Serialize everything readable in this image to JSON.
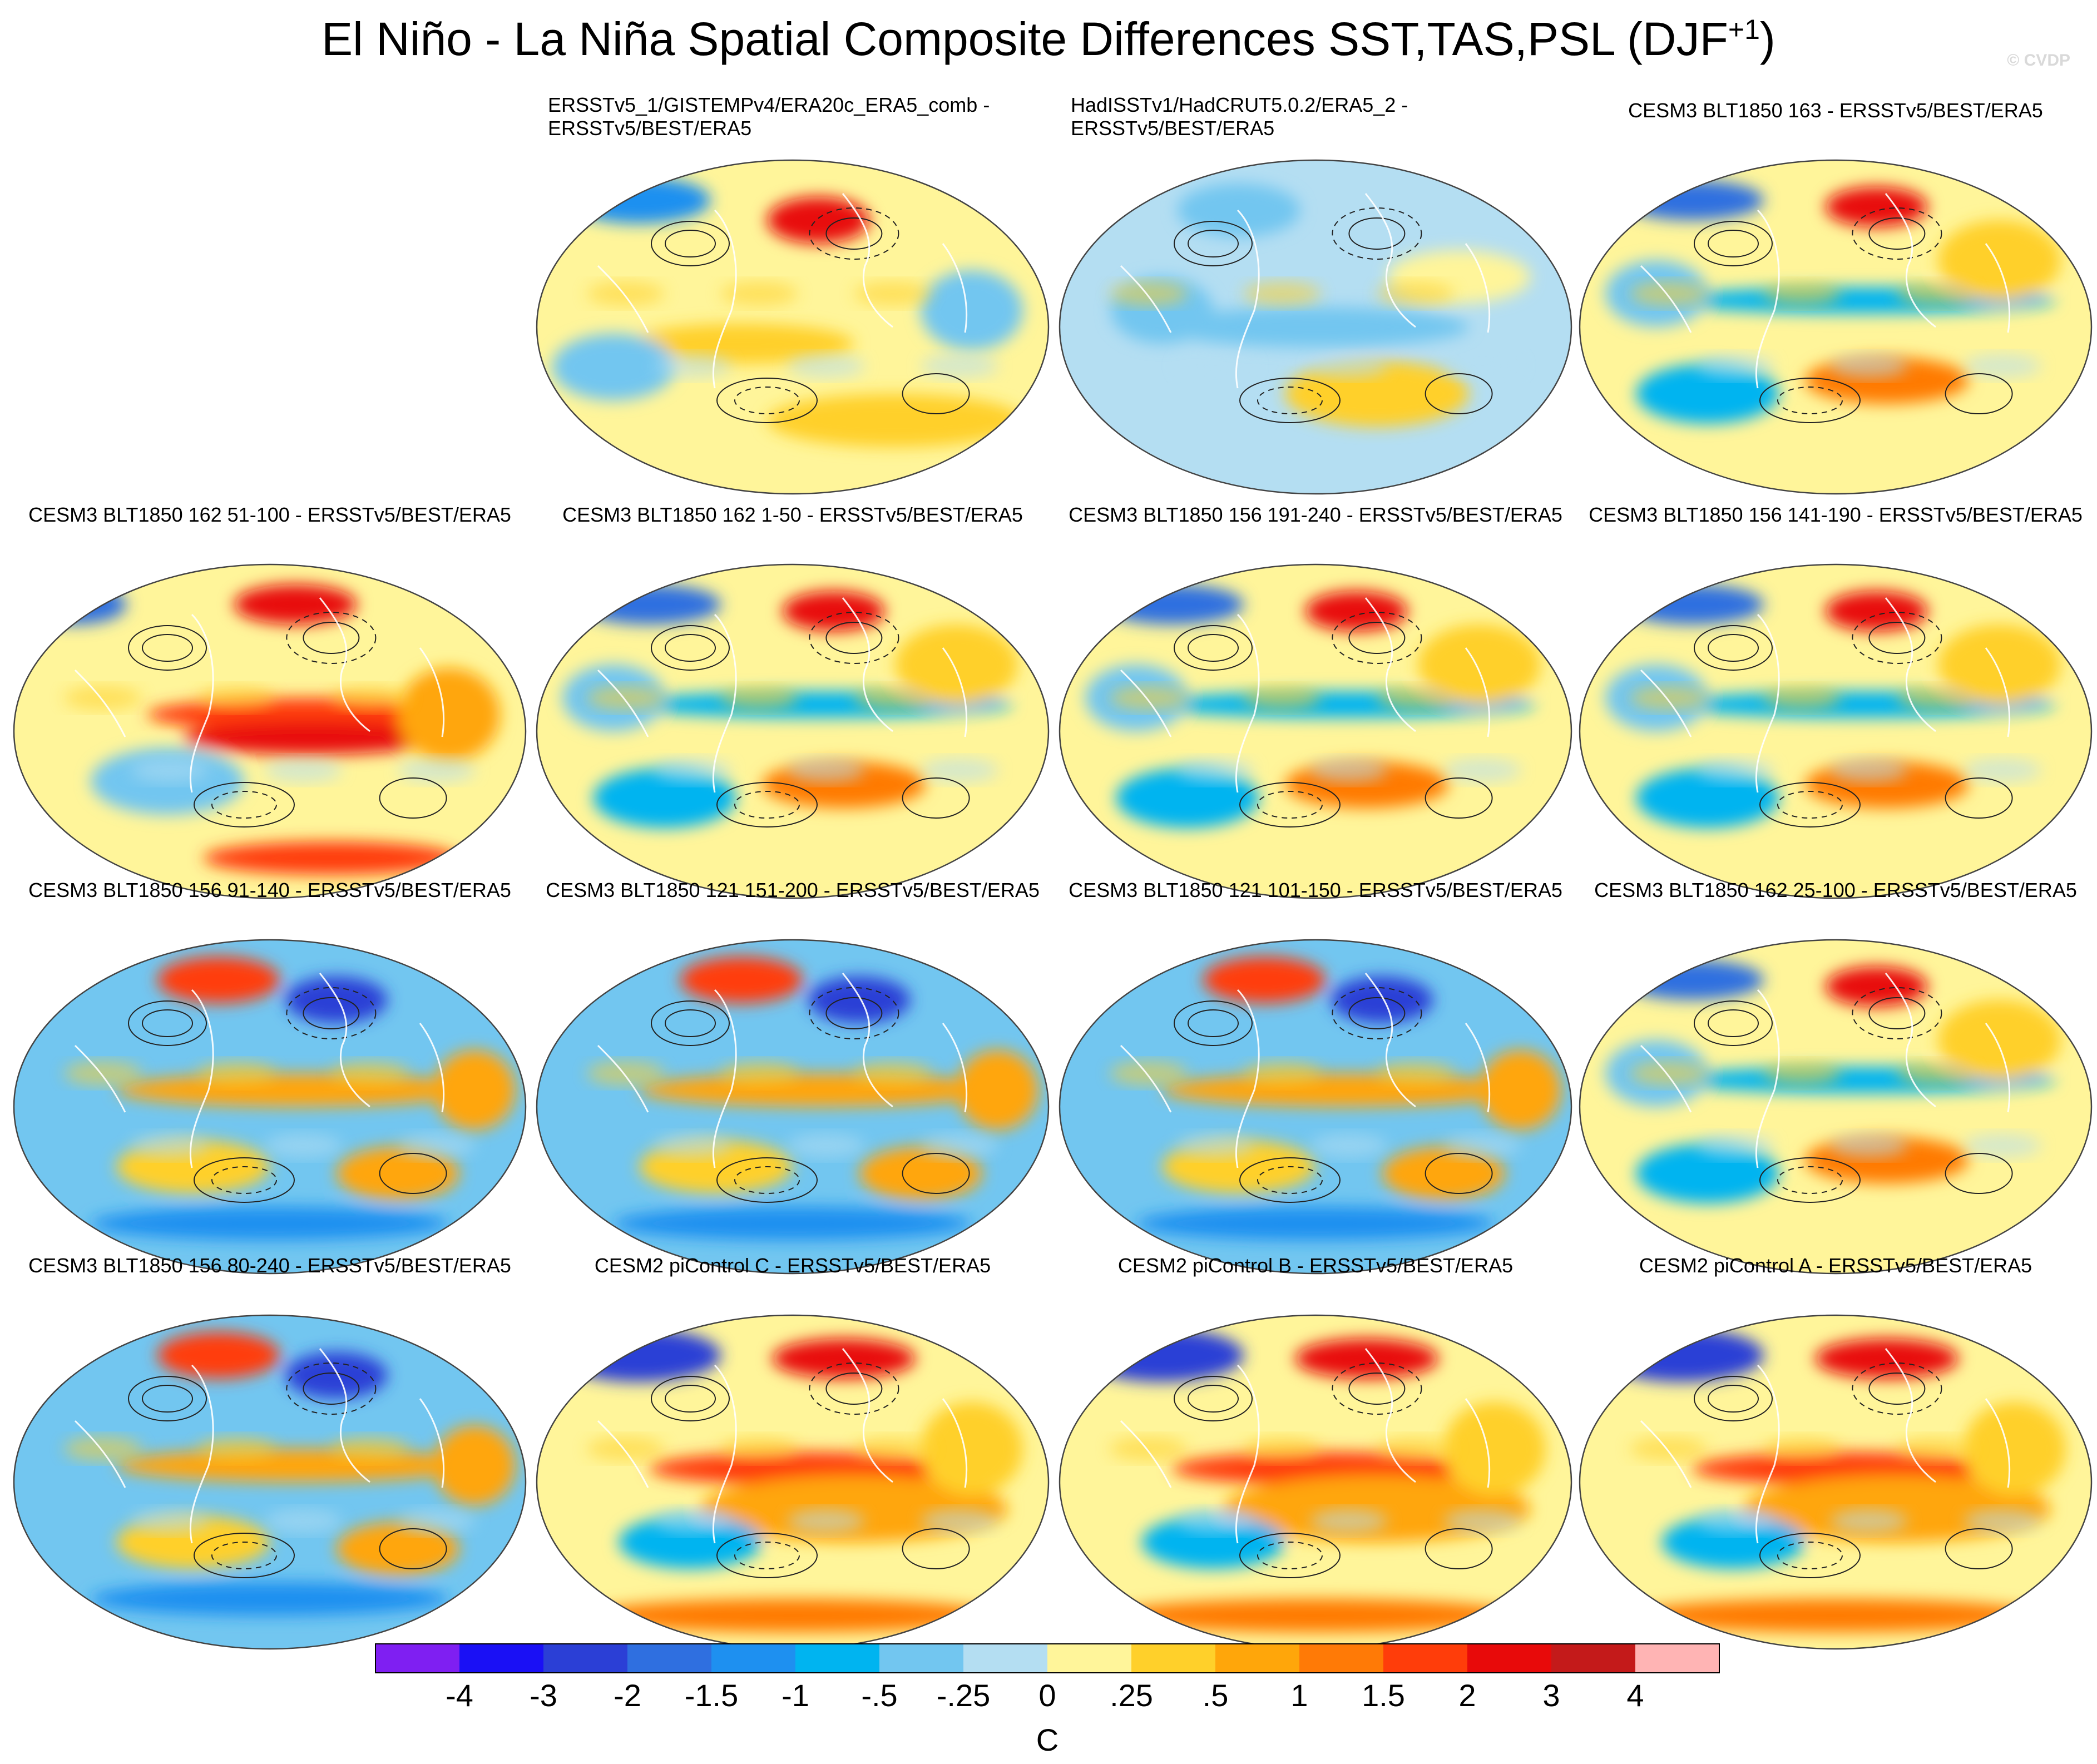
{
  "title": "El Niño - La Niña Spatial Composite Differences SST,TAS,PSL (DJF",
  "title_sup": "+1",
  "title_close": ")",
  "credit": "© CVDP",
  "chart_data": {
    "type": "heatmap",
    "title": "El Niño - La Niña Spatial Composite Differences SST,TAS,PSL (DJF+1)",
    "units": "C",
    "colorbar": {
      "labels": [
        "-4",
        "-3",
        "-2",
        "-1.5",
        "-1",
        "-.5",
        "-.25",
        "0",
        ".25",
        ".5",
        "1",
        "1.5",
        "2",
        "3",
        "4"
      ],
      "colors": [
        "#7f1ff2",
        "#1a10f5",
        "#2b3fd6",
        "#2f6fe0",
        "#1e90f0",
        "#00b4f0",
        "#72c6f0",
        "#b4def2",
        "#fff59a",
        "#ffd02a",
        "#ffa60a",
        "#ff7a06",
        "#ff3d0a",
        "#e80a0a",
        "#c41a1a",
        "#ffb4b4"
      ]
    },
    "panels": [
      {
        "title": "ERSSTv5_1/GISTEMPv4/ERA20c_ERA5_comb -\nERSSTv5/BEST/ERA5",
        "pattern": "weak"
      },
      {
        "title": "HadISSTv1/HadCRUT5.0.2/ERA5_2 -\nERSSTv5/BEST/ERA5",
        "pattern": "neutral"
      },
      {
        "title": "CESM3 BLT1850 163 - ERSSTv5/BEST/ERA5",
        "pattern": "moderate"
      },
      {
        "title": "CESM3 BLT1850 162 51-100 - ERSSTv5/BEST/ERA5",
        "pattern": "strong"
      },
      {
        "title": "CESM3 BLT1850 162 1-50 - ERSSTv5/BEST/ERA5",
        "pattern": "moderate"
      },
      {
        "title": "CESM3 BLT1850 156 191-240 - ERSSTv5/BEST/ERA5",
        "pattern": "moderate"
      },
      {
        "title": "CESM3 BLT1850 156 141-190 - ERSSTv5/BEST/ERA5",
        "pattern": "moderate"
      },
      {
        "title": "CESM3 BLT1850 156 91-140 - ERSSTv5/BEST/ERA5",
        "pattern": "cool"
      },
      {
        "title": "CESM3 BLT1850 121 151-200 - ERSSTv5/BEST/ERA5",
        "pattern": "cool"
      },
      {
        "title": "CESM3 BLT1850 121 101-150 - ERSSTv5/BEST/ERA5",
        "pattern": "cool"
      },
      {
        "title": "CESM3 BLT1850 162 25-100 - ERSSTv5/BEST/ERA5",
        "pattern": "moderate"
      },
      {
        "title": "CESM3 BLT1850 156 80-240 - ERSSTv5/BEST/ERA5",
        "pattern": "cool"
      },
      {
        "title": "CESM2 piControl C - ERSSTv5/BEST/ERA5",
        "pattern": "warm"
      },
      {
        "title": "CESM2 piControl B - ERSSTv5/BEST/ERA5",
        "pattern": "warm"
      },
      {
        "title": "CESM2 piControl A - ERSSTv5/BEST/ERA5",
        "pattern": "warm"
      }
    ]
  }
}
